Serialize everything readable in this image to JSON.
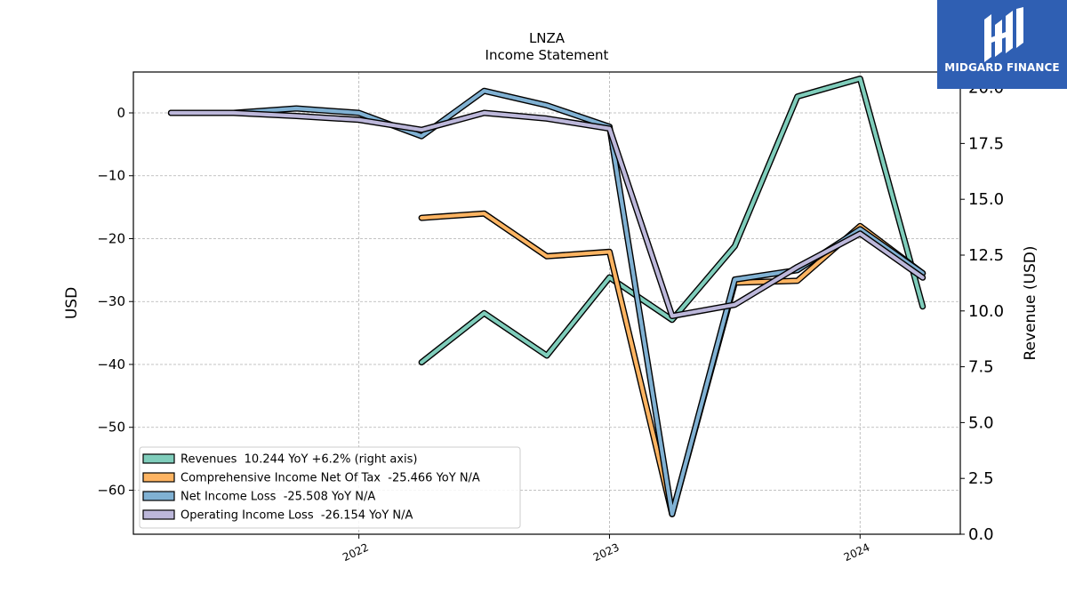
{
  "logo": {
    "text": "MIDGARD FINANCE"
  },
  "chart_data": {
    "type": "line",
    "title": "LNZA",
    "subtitle": "Income Statement",
    "ylabel_left": "USD",
    "ylabel_right": "Revenue (USD)",
    "x_ticks": [
      {
        "label": "2022",
        "t": 2022.0
      },
      {
        "label": "2023",
        "t": 2023.0
      },
      {
        "label": "2024",
        "t": 2024.0
      }
    ],
    "xlim": [
      2021.1,
      2024.4
    ],
    "ylim_left": [
      -67,
      6.5
    ],
    "ylim_right": [
      0,
      20.7
    ],
    "y_ticks_left": [
      0,
      -10,
      -20,
      -30,
      -40,
      -50,
      -60
    ],
    "y_ticks_left_labels": [
      "0",
      "−10",
      "−20",
      "−30",
      "−40",
      "−50",
      "−60"
    ],
    "y_ticks_right": [
      0,
      2.5,
      5,
      7.5,
      10,
      12.5,
      15,
      17.5,
      20
    ],
    "y_ticks_right_labels": [
      "0.0",
      "2.5",
      "5.0",
      "7.5",
      "10.0",
      "12.5",
      "15.0",
      "17.5",
      "20.0"
    ],
    "grid": true,
    "legend_position": "lower-left",
    "series": [
      {
        "name": "Revenues",
        "legend": "Revenues  10.244 YoY +6.2% (right axis)",
        "axis": "right",
        "color": "#7fcdbb",
        "x": [
          "2022-04-01",
          "2022-07-01",
          "2022-10-01",
          "2023-01-01",
          "2023-04-01",
          "2023-07-01",
          "2023-10-01",
          "2024-01-01",
          "2024-04-01"
        ],
        "values": [
          7.7,
          9.9,
          8.0,
          11.5,
          9.6,
          12.9,
          19.6,
          20.4,
          10.2
        ]
      },
      {
        "name": "Comprehensive Income Net Of Tax",
        "legend": "Comprehensive Income Net Of Tax  -25.466 YoY N/A",
        "axis": "left",
        "color": "#fdb462",
        "x": [
          "2022-04-01",
          "2022-07-01",
          "2022-10-01",
          "2023-01-01",
          "2023-04-01",
          "2023-07-01",
          "2023-10-01",
          "2024-01-01",
          "2024-04-01"
        ],
        "values": [
          -16.7,
          -16.0,
          -22.8,
          -22.1,
          -63.8,
          -27.0,
          -26.7,
          -18.0,
          -25.5
        ]
      },
      {
        "name": "Net Income Loss",
        "legend": "Net Income Loss  -25.508 YoY N/A",
        "axis": "left",
        "color": "#80b1d3",
        "x": [
          "2021-04-01",
          "2021-07-01",
          "2021-10-01",
          "2022-01-01",
          "2022-04-01",
          "2022-07-01",
          "2022-10-01",
          "2023-01-01",
          "2023-04-01",
          "2023-07-01",
          "2023-10-01",
          "2024-01-01",
          "2024-04-01"
        ],
        "values": [
          0,
          0,
          0.7,
          0,
          -3.7,
          3.5,
          1.2,
          -2.2,
          -63.8,
          -26.5,
          -25.0,
          -18.5,
          -25.5
        ]
      },
      {
        "name": "Operating Income Loss",
        "legend": "Operating Income Loss  -26.154 YoY N/A",
        "axis": "left",
        "color": "#bcb7da",
        "x": [
          "2021-04-01",
          "2021-07-01",
          "2021-10-01",
          "2022-01-01",
          "2022-04-01",
          "2022-07-01",
          "2022-10-01",
          "2023-01-01",
          "2023-04-01",
          "2023-07-01",
          "2023-10-01",
          "2024-01-01",
          "2024-04-01"
        ],
        "values": [
          0,
          0,
          -0.5,
          -1.1,
          -2.7,
          0,
          -0.9,
          -2.5,
          -32.3,
          -30.5,
          -24.5,
          -19.2,
          -26.2
        ]
      }
    ]
  }
}
